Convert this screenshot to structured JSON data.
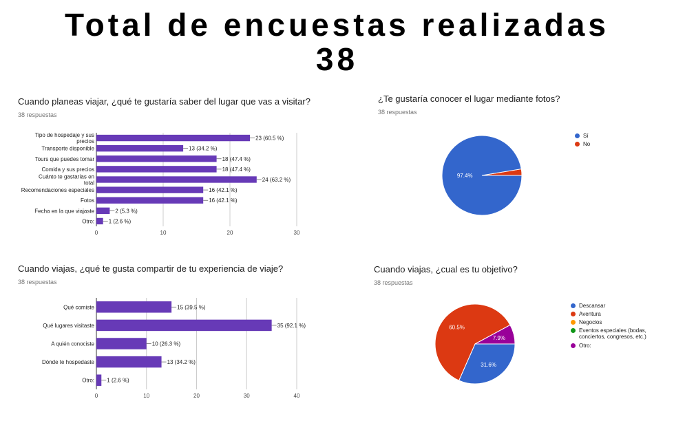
{
  "header": {
    "line1": "Total de encuestas realizadas",
    "line2": "38"
  },
  "chart_data": [
    {
      "type": "bar",
      "orientation": "horizontal",
      "title": "Cuando planeas viajar, ¿qué te gustaría saber del lugar que vas a visitar?",
      "subtitle": "38 respuestas",
      "categories": [
        "Tipo de hospedaje y sus precios",
        "Transporte disponible",
        "Tours que puedes tomar",
        "Comida y sus precios",
        "Cuánto te gastarías en total",
        "Recomendaciones especiales",
        "Fotos",
        "Fecha en la que viajaste",
        "Otro:"
      ],
      "values": [
        23,
        13,
        18,
        18,
        24,
        16,
        16,
        2,
        1
      ],
      "data_labels": [
        "23 (60.5 %)",
        "13 (34.2 %)",
        "18 (47.4 %)",
        "18 (47.4 %)",
        "24 (63.2 %)",
        "16 (42.1 %)",
        "16 (42.1 %)",
        "2 (5.3 %)",
        "1 (2.6 %)"
      ],
      "xlim": [
        0,
        30
      ],
      "xticks": [
        "0",
        "10",
        "20",
        "30"
      ],
      "color": "#673ab7"
    },
    {
      "type": "pie",
      "title": "¿Te gustaría conocer el lugar mediante fotos?",
      "subtitle": "38 respuestas",
      "slices": [
        {
          "label": "Sí",
          "value": 97.4,
          "color": "#3366cc",
          "data_label": "97.4%"
        },
        {
          "label": "No",
          "value": 2.6,
          "color": "#dc3912",
          "data_label": ""
        }
      ],
      "legend_position": "right"
    },
    {
      "type": "bar",
      "orientation": "horizontal",
      "title": "Cuando viajas, ¿qué te gusta compartir de tu experiencia de viaje?",
      "subtitle": "38 respuestas",
      "categories": [
        "Qué comiste",
        "Qué lugares visitaste",
        "A quién conociste",
        "Dónde te hospedaste",
        "Otro:"
      ],
      "values": [
        15,
        35,
        10,
        13,
        1
      ],
      "data_labels": [
        "15 (39.5 %)",
        "35 (92.1 %)",
        "10 (26.3 %)",
        "13 (34.2 %)",
        "1 (2.6 %)"
      ],
      "xlim": [
        0,
        40
      ],
      "xticks": [
        "0",
        "10",
        "20",
        "30",
        "40"
      ],
      "color": "#673ab7"
    },
    {
      "type": "pie",
      "title": "Cuando viajas, ¿cual es tu objetivo?",
      "subtitle": "38 respuestas",
      "slices": [
        {
          "label": "Descansar",
          "value": 31.6,
          "color": "#3366cc",
          "data_label": "31.6%"
        },
        {
          "label": "Aventura",
          "value": 60.5,
          "color": "#dc3912",
          "data_label": "60.5%"
        },
        {
          "label": "Negocios",
          "value": 0,
          "color": "#ff9900",
          "data_label": ""
        },
        {
          "label": "Eventos especiales (bodas, conciertos, congresos, etc.)",
          "value": 0,
          "color": "#109618",
          "data_label": ""
        },
        {
          "label": "Otro:",
          "value": 7.9,
          "color": "#990099",
          "data_label": "7.9%"
        }
      ],
      "legend_position": "right"
    }
  ]
}
